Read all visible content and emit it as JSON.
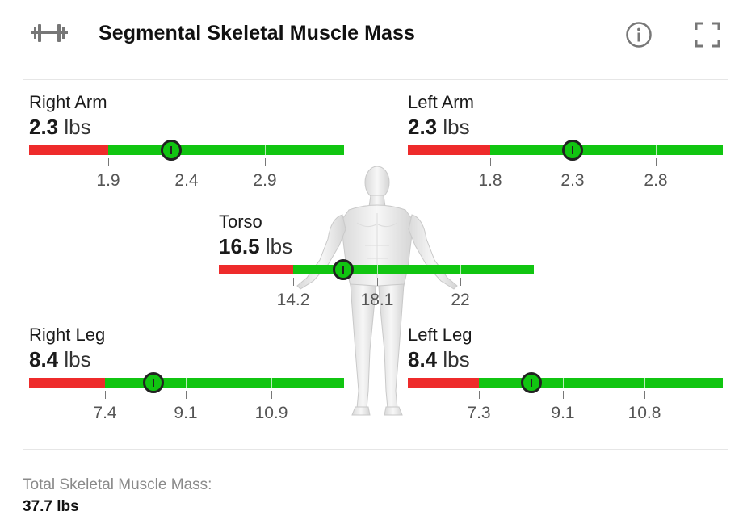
{
  "header": {
    "title": "Segmental Skeletal Muscle Mass",
    "icons": {
      "left": "dumbbell-icon",
      "info": "info-icon",
      "expand": "fullscreen-icon"
    }
  },
  "colors": {
    "low": "#ee2b2b",
    "normal": "#11c511",
    "marker_border": "#222222"
  },
  "segments": [
    {
      "id": "right-arm",
      "name": "Right Arm",
      "value": "2.3",
      "unit": "lbs",
      "ticks": [
        "1.9",
        "2.4",
        "2.9"
      ]
    },
    {
      "id": "left-arm",
      "name": "Left Arm",
      "value": "2.3",
      "unit": "lbs",
      "ticks": [
        "1.8",
        "2.3",
        "2.8"
      ]
    },
    {
      "id": "torso",
      "name": "Torso",
      "value": "16.5",
      "unit": "lbs",
      "ticks": [
        "14.2",
        "18.1",
        "22"
      ]
    },
    {
      "id": "right-leg",
      "name": "Right Leg",
      "value": "8.4",
      "unit": "lbs",
      "ticks": [
        "7.4",
        "9.1",
        "10.9"
      ]
    },
    {
      "id": "left-leg",
      "name": "Left Leg",
      "value": "8.4",
      "unit": "lbs",
      "ticks": [
        "7.3",
        "9.1",
        "10.8"
      ]
    }
  ],
  "total": {
    "label": "Total Skeletal Muscle Mass:",
    "value": "37.7 lbs"
  }
}
